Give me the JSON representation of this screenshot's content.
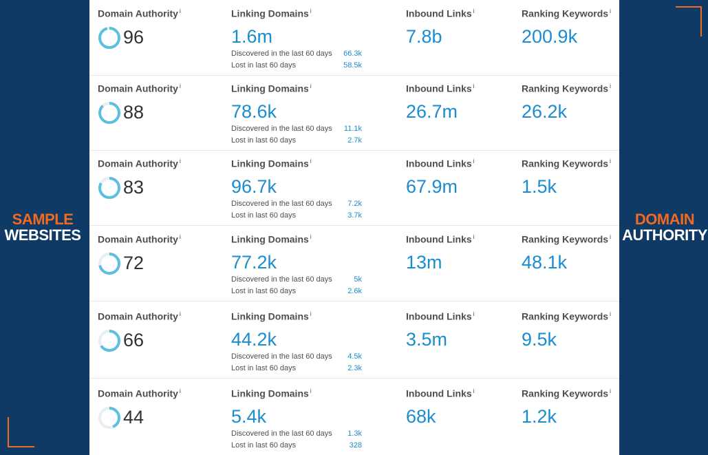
{
  "side": {
    "left_line1": "SAMPLE",
    "left_line2": "WEBSITES",
    "right_line1": "DOMAIN",
    "right_line2": "AUTHORITY"
  },
  "labels": {
    "domain_authority": "Domain Authority",
    "linking_domains": "Linking Domains",
    "inbound_links": "Inbound Links",
    "ranking_keywords": "Ranking Keywords",
    "info": "i",
    "discovered": "Discovered in the last 60 days",
    "lost": "Lost in last 60 days"
  },
  "colors": {
    "background": "#0f3a66",
    "accent_orange": "#f26a21",
    "value_blue": "#1a8ccf",
    "ring": "#5bbfe0",
    "ring_track": "#e8eef2"
  },
  "rows": [
    {
      "da": "96",
      "da_fraction": 0.96,
      "linking_domains": "1.6m",
      "discovered": "66.3k",
      "lost": "58.5k",
      "inbound_links": "7.8b",
      "ranking_keywords": "200.9k"
    },
    {
      "da": "88",
      "da_fraction": 0.88,
      "linking_domains": "78.6k",
      "discovered": "11.1k",
      "lost": "2.7k",
      "inbound_links": "26.7m",
      "ranking_keywords": "26.2k"
    },
    {
      "da": "83",
      "da_fraction": 0.83,
      "linking_domains": "96.7k",
      "discovered": "7.2k",
      "lost": "3.7k",
      "inbound_links": "67.9m",
      "ranking_keywords": "1.5k"
    },
    {
      "da": "72",
      "da_fraction": 0.72,
      "linking_domains": "77.2k",
      "discovered": "5k",
      "lost": "2.6k",
      "inbound_links": "13m",
      "ranking_keywords": "48.1k"
    },
    {
      "da": "66",
      "da_fraction": 0.66,
      "linking_domains": "44.2k",
      "discovered": "4.5k",
      "lost": "2.3k",
      "inbound_links": "3.5m",
      "ranking_keywords": "9.5k"
    },
    {
      "da": "44",
      "da_fraction": 0.44,
      "linking_domains": "5.4k",
      "discovered": "1.3k",
      "lost": "328",
      "inbound_links": "68k",
      "ranking_keywords": "1.2k"
    }
  ]
}
